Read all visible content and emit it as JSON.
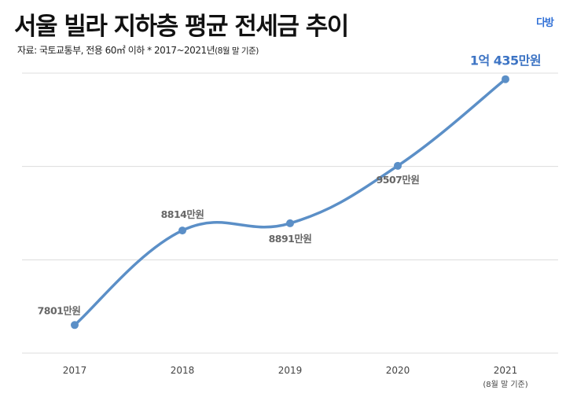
{
  "header": {
    "title": "서울 빌라 지하층 평균 전세금 추이",
    "subtitle": "자료: 국토교통부, 전용 60㎡ 이하   * 2017~2021년",
    "subtitle_note": "(8월 말 기준)",
    "logo": "다방"
  },
  "chart_data": {
    "type": "line",
    "title": "서울 빌라 지하층 평균 전세금 추이",
    "x": [
      "2017",
      "2018",
      "2019",
      "2020",
      "2021"
    ],
    "x_sublabels": [
      "",
      "",
      "",
      "",
      "(8월 말 기준)"
    ],
    "series": [
      {
        "values": [
          7801,
          8814,
          8891,
          9507,
          10435
        ],
        "data_labels": [
          "7801만원",
          "8814만원",
          "8891만원",
          "9507만원",
          "1억 435만원"
        ],
        "color": "#5b8fc7"
      }
    ],
    "highlight_label_color": "#3d74c4",
    "ylim": [
      7500,
      10500
    ],
    "grid": true,
    "smooth": true,
    "xlabel": "",
    "ylabel": ""
  }
}
